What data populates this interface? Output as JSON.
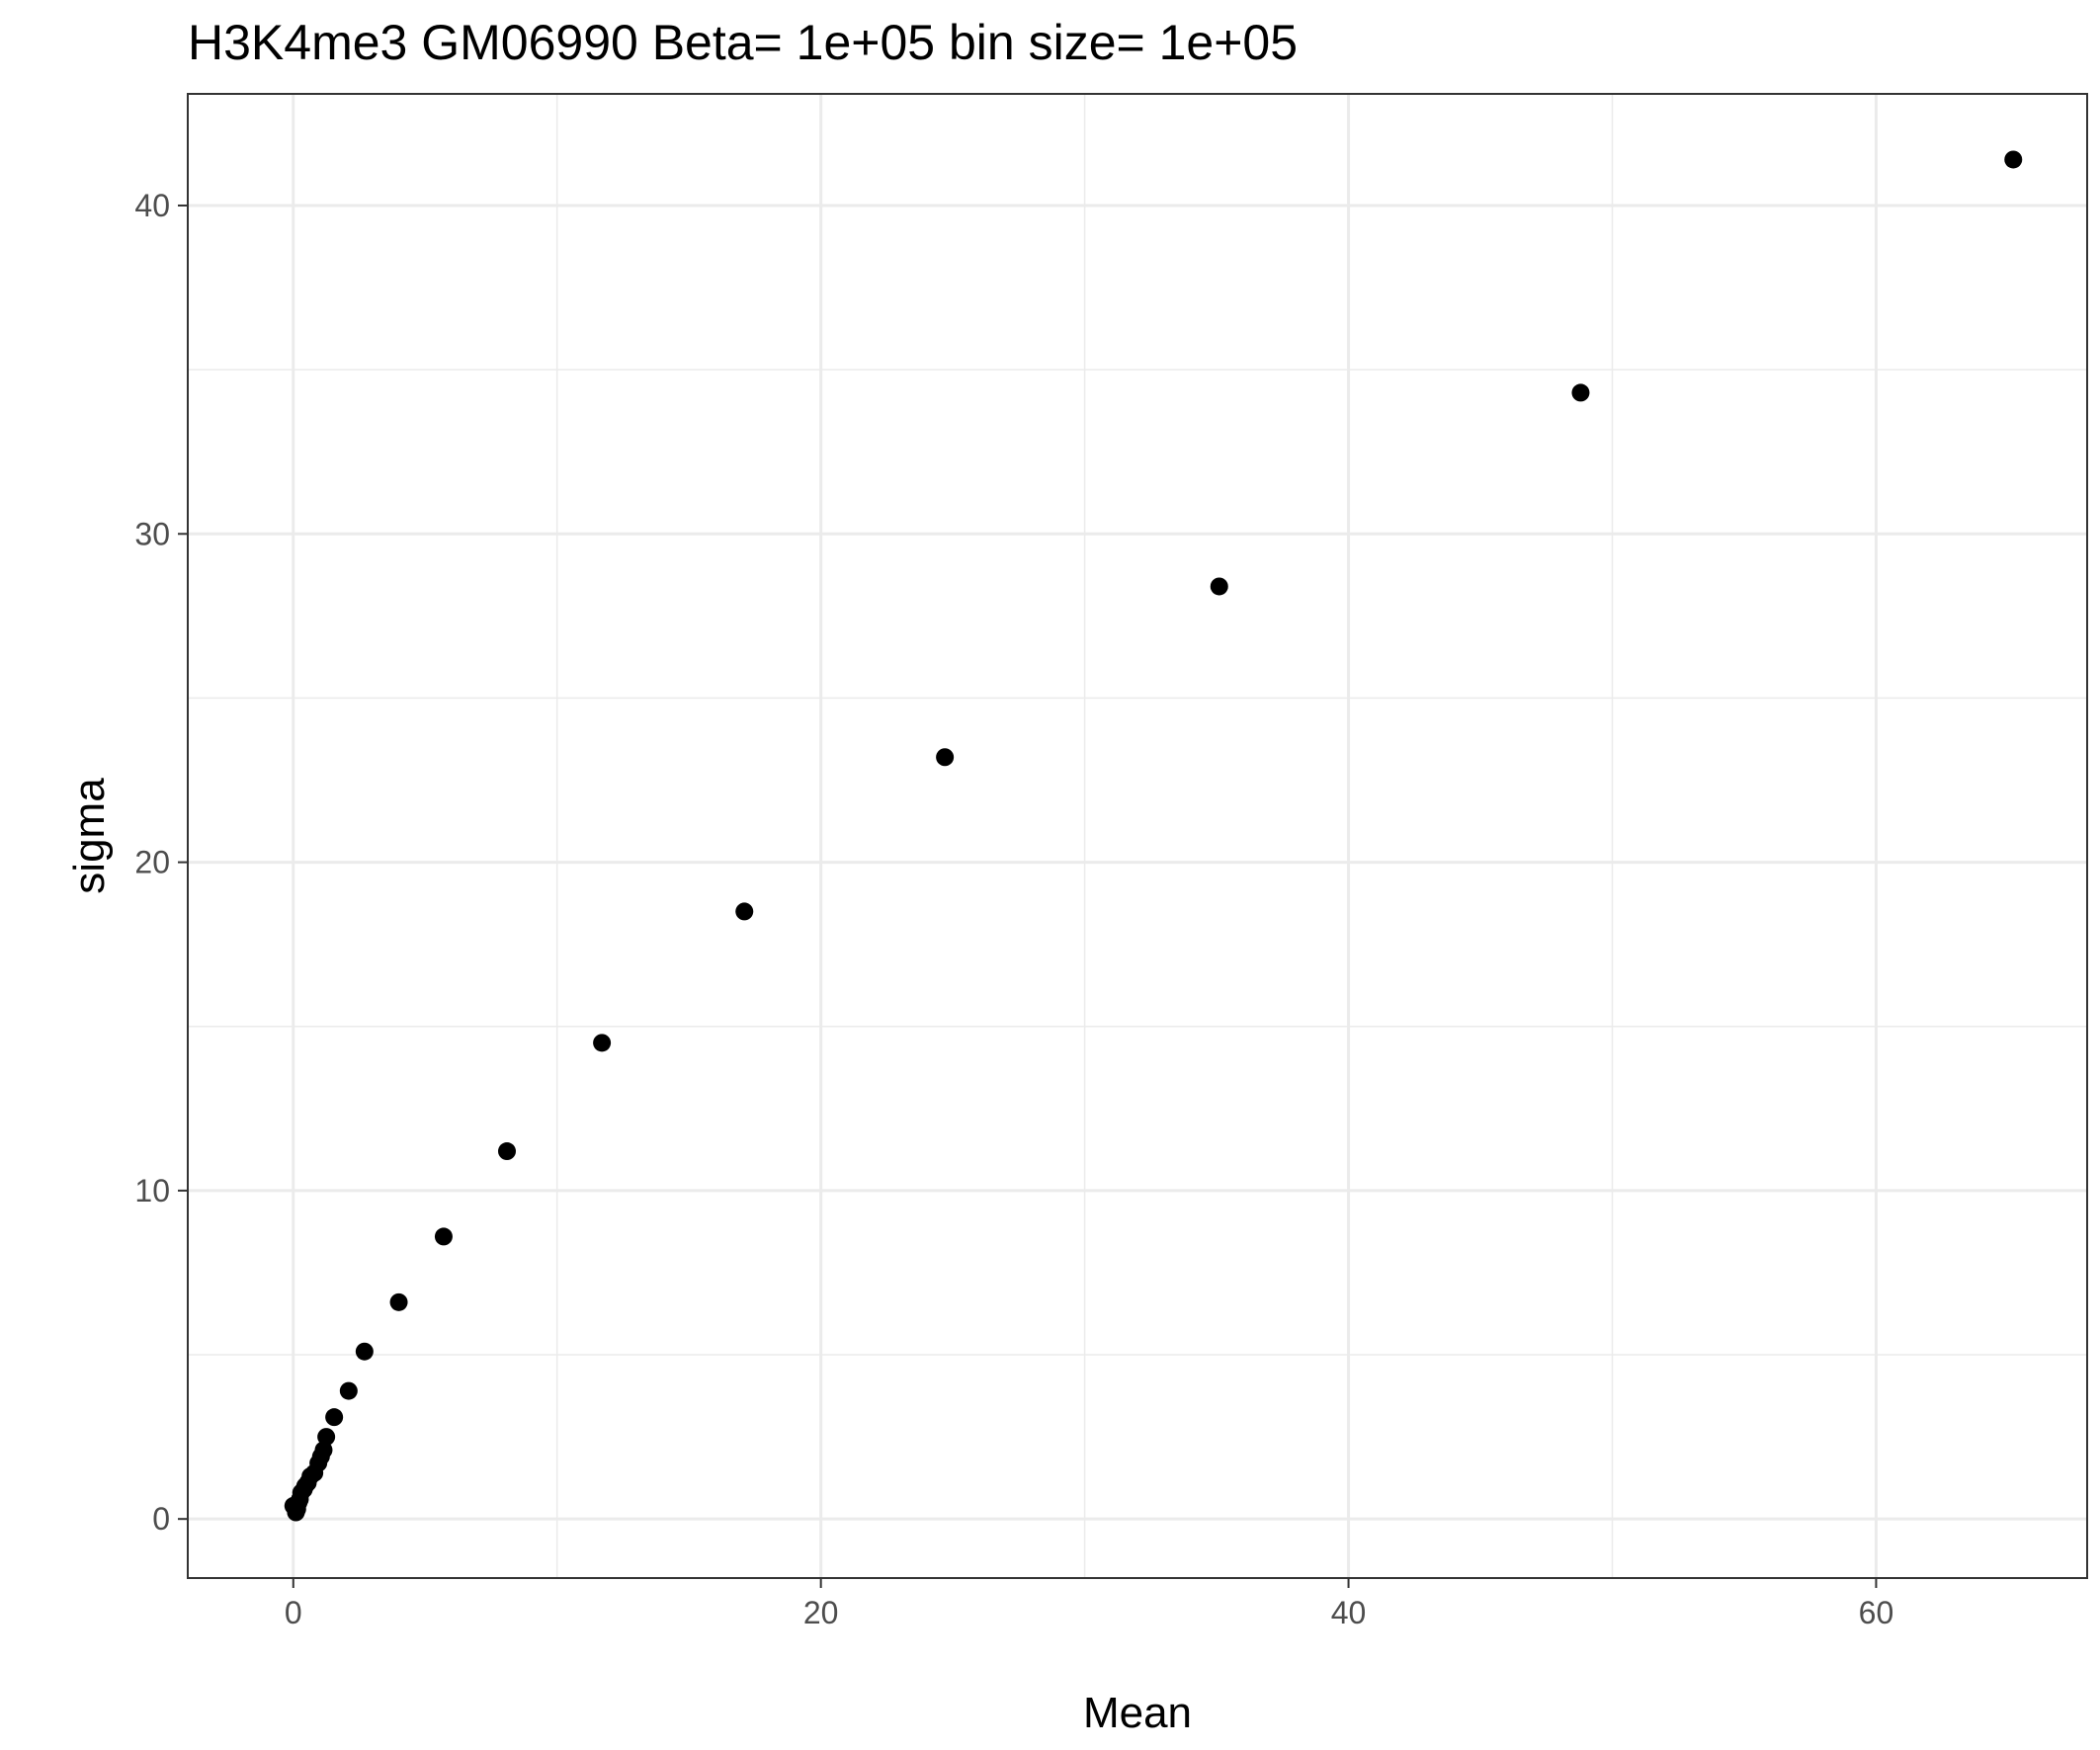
{
  "chart_data": {
    "type": "scatter",
    "title": "H3K4me3 GM06990  Beta=  1e+05  bin size=  1e+05",
    "xlabel": "Mean",
    "ylabel": "sigma",
    "xlim": [
      -4,
      68
    ],
    "ylim": [
      -1.8,
      43.4
    ],
    "x_ticks": [
      0,
      20,
      40,
      60
    ],
    "x_tick_labels": [
      "0",
      "20",
      "40",
      "60"
    ],
    "y_ticks": [
      0,
      10,
      20,
      30,
      40
    ],
    "y_tick_labels": [
      "0",
      "10",
      "20",
      "30",
      "40"
    ],
    "grid": true,
    "legend": "none",
    "point_color": "#000000",
    "points": [
      {
        "x": 0.0,
        "y": 0.4
      },
      {
        "x": 0.1,
        "y": 0.2
      },
      {
        "x": 0.15,
        "y": 0.3
      },
      {
        "x": 0.2,
        "y": 0.5
      },
      {
        "x": 0.25,
        "y": 0.6
      },
      {
        "x": 0.3,
        "y": 0.8
      },
      {
        "x": 0.4,
        "y": 0.9
      },
      {
        "x": 0.45,
        "y": 1.0
      },
      {
        "x": 0.55,
        "y": 1.1
      },
      {
        "x": 0.65,
        "y": 1.3
      },
      {
        "x": 0.8,
        "y": 1.4
      },
      {
        "x": 0.95,
        "y": 1.7
      },
      {
        "x": 1.05,
        "y": 1.9
      },
      {
        "x": 1.15,
        "y": 2.1
      },
      {
        "x": 1.25,
        "y": 2.5
      },
      {
        "x": 1.55,
        "y": 3.1
      },
      {
        "x": 2.1,
        "y": 3.9
      },
      {
        "x": 2.7,
        "y": 5.1
      },
      {
        "x": 4.0,
        "y": 6.6
      },
      {
        "x": 5.7,
        "y": 8.6
      },
      {
        "x": 8.1,
        "y": 11.2
      },
      {
        "x": 11.7,
        "y": 14.5
      },
      {
        "x": 17.1,
        "y": 18.5
      },
      {
        "x": 24.7,
        "y": 23.2
      },
      {
        "x": 35.1,
        "y": 28.4
      },
      {
        "x": 48.8,
        "y": 34.3
      },
      {
        "x": 65.2,
        "y": 41.4
      }
    ]
  }
}
